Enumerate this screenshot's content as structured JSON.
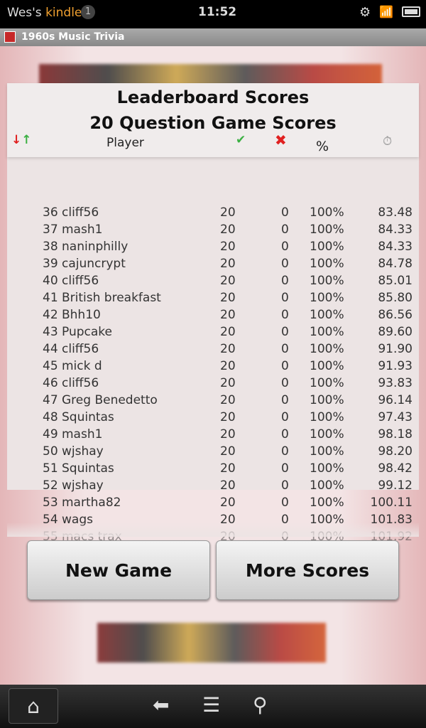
{
  "status": {
    "device_owner": "Wes's",
    "device_brand": "kindle",
    "notifications": "1",
    "time": "11:52"
  },
  "app": {
    "title": "1960s Music Trivia"
  },
  "leaderboard": {
    "title": "Leaderboard Scores",
    "subtitle": "20 Question Game Scores",
    "columns": {
      "player": "Player",
      "correct_icon": "check-icon",
      "wrong_icon": "x-icon",
      "percent": "%",
      "time_icon": "stopwatch-icon"
    },
    "rows": [
      [
        "36",
        "cliff56",
        "20",
        "0",
        "100%",
        "83.48"
      ],
      [
        "37",
        "mash1",
        "20",
        "0",
        "100%",
        "84.33"
      ],
      [
        "38",
        "naninphilly",
        "20",
        "0",
        "100%",
        "84.33"
      ],
      [
        "39",
        "cajuncrypt",
        "20",
        "0",
        "100%",
        "84.78"
      ],
      [
        "40",
        "cliff56",
        "20",
        "0",
        "100%",
        "85.01"
      ],
      [
        "41",
        "British breakfast",
        "20",
        "0",
        "100%",
        "85.80"
      ],
      [
        "42",
        "Bhh10",
        "20",
        "0",
        "100%",
        "86.56"
      ],
      [
        "43",
        "Pupcake",
        "20",
        "0",
        "100%",
        "89.60"
      ],
      [
        "44",
        "cliff56",
        "20",
        "0",
        "100%",
        "91.90"
      ],
      [
        "45",
        "mick d",
        "20",
        "0",
        "100%",
        "91.93"
      ],
      [
        "46",
        "cliff56",
        "20",
        "0",
        "100%",
        "93.83"
      ],
      [
        "47",
        "Greg Benedetto",
        "20",
        "0",
        "100%",
        "96.14"
      ],
      [
        "48",
        "Squintas",
        "20",
        "0",
        "100%",
        "97.43"
      ],
      [
        "49",
        "mash1",
        "20",
        "0",
        "100%",
        "98.18"
      ],
      [
        "50",
        "wjshay",
        "20",
        "0",
        "100%",
        "98.20"
      ],
      [
        "51",
        "Squintas",
        "20",
        "0",
        "100%",
        "98.42"
      ],
      [
        "52",
        "wjshay",
        "20",
        "0",
        "100%",
        "99.12"
      ],
      [
        "53",
        "martha82",
        "20",
        "0",
        "100%",
        "100.11"
      ],
      [
        "54",
        "wags",
        "20",
        "0",
        "100%",
        "101.83"
      ],
      [
        "55",
        "macs trax",
        "20",
        "0",
        "100%",
        "101.92"
      ]
    ]
  },
  "buttons": {
    "new_game": "New Game",
    "more_scores": "More Scores"
  },
  "colors": {
    "kindle_orange": "#f0a030",
    "correct": "#3cb043",
    "wrong": "#e02020"
  }
}
